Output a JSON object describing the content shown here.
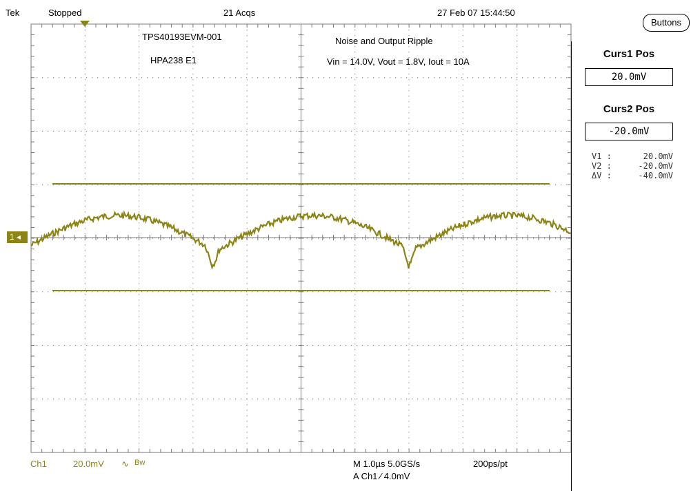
{
  "status": {
    "brand": "Tek",
    "state": "Stopped",
    "acqs": "21 Acqs",
    "datetime": "27 Feb 07 15:44:50"
  },
  "annotations": {
    "left_line1": "TPS40193EVM-001",
    "left_line2": "HPA238 E1",
    "right_line1": "Noise and Output Ripple",
    "right_line2": "Vin = 14.0V, Vout = 1.8V, Iout = 10A"
  },
  "channel_marker": "1",
  "side_panel": {
    "buttons_label": "Buttons",
    "curs1_title": "Curs1 Pos",
    "curs1_value": "20.0mV",
    "curs2_title": "Curs2 Pos",
    "curs2_value": "-20.0mV",
    "readouts": [
      {
        "label": "V1 :",
        "value": "20.0mV"
      },
      {
        "label": "V2 :",
        "value": "-20.0mV"
      },
      {
        "label": "ΔV :",
        "value": "-40.0mV"
      }
    ]
  },
  "bottom": {
    "ch": "Ch1",
    "scale": "20.0mV",
    "coupling": "∿",
    "bw": "Bw",
    "timebase": "M 1.0µs 5.0GS/s",
    "record": "200ps/pt",
    "trigger": "A  Ch1  ⁄  4.0mV"
  },
  "colors": {
    "trace": "#8c8416",
    "grid": "#7a7a7a"
  },
  "waveform": {
    "description_free": true,
    "cursor1_mv": 20.0,
    "cursor2_mv": -20.0,
    "volts_per_div_mv": 20.0
  }
}
